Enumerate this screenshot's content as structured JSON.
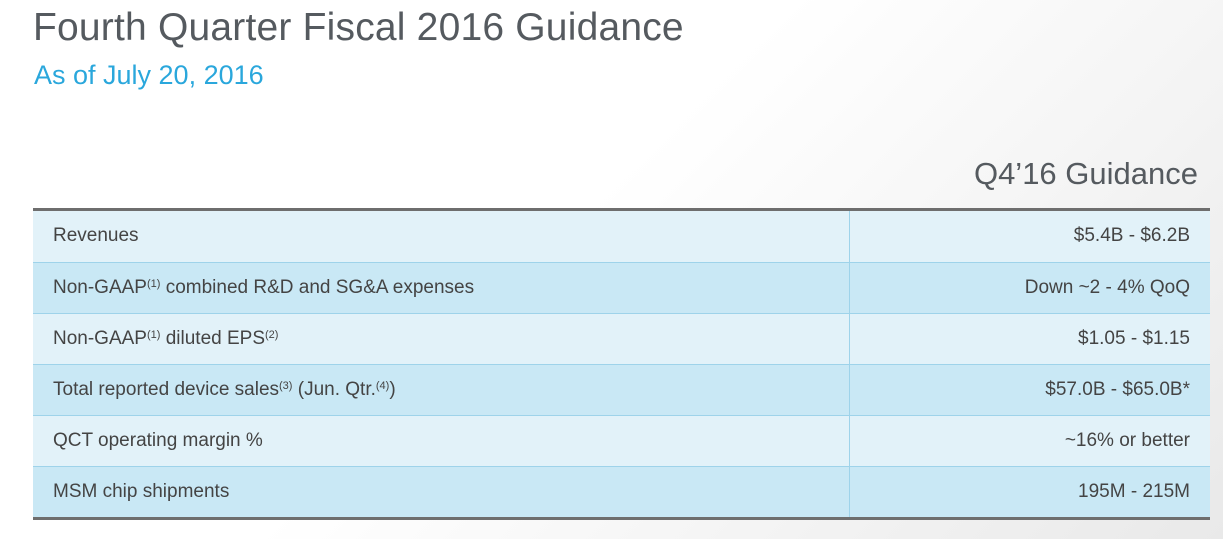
{
  "header": {
    "title": "Fourth Quarter Fiscal 2016 Guidance",
    "subtitle": "As of July 20, 2016"
  },
  "table": {
    "column_header": "Q4’16 Guidance",
    "rows": [
      {
        "label": "Revenues",
        "value": "$5.4B - $6.2B"
      },
      {
        "label_parts": [
          "Non-GAAP",
          "(1)",
          " combined R&D and SG&A expenses"
        ],
        "value": "Down ~2 - 4% QoQ"
      },
      {
        "label_parts": [
          "Non-GAAP",
          "(1)",
          " diluted EPS",
          "(2)"
        ],
        "value": "$1.05 - $1.15"
      },
      {
        "label_parts": [
          "Total reported device sales",
          "(3)",
          " (Jun. Qtr.",
          "(4)",
          ")"
        ],
        "value": "$57.0B - $65.0B*"
      },
      {
        "label": "QCT operating margin %",
        "value": "~16% or better"
      },
      {
        "label": "MSM chip shipments",
        "value": "195M - 215M"
      }
    ]
  }
}
